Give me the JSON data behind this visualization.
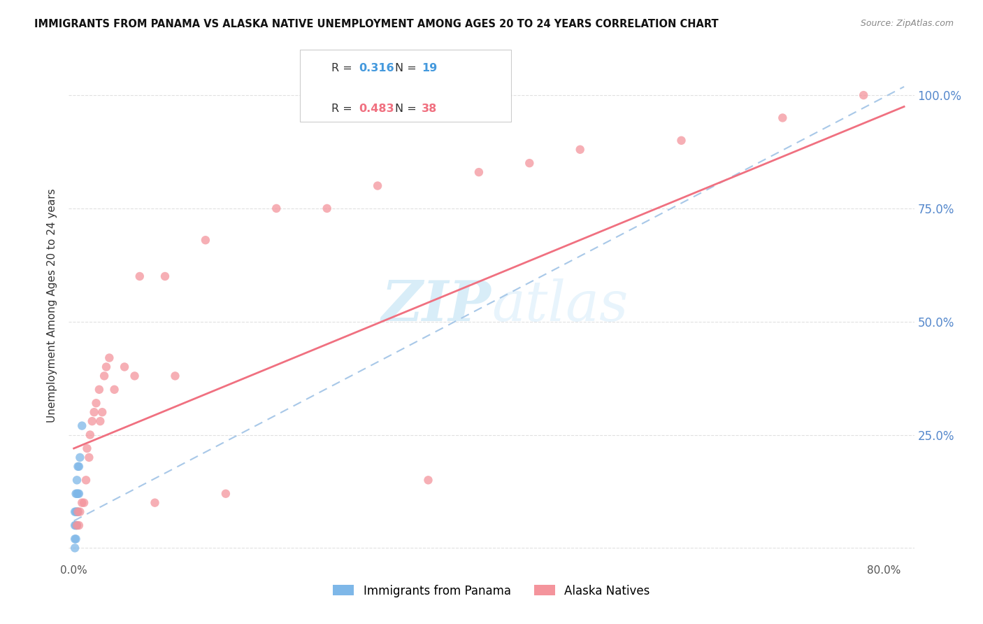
{
  "title": "IMMIGRANTS FROM PANAMA VS ALASKA NATIVE UNEMPLOYMENT AMONG AGES 20 TO 24 YEARS CORRELATION CHART",
  "source": "Source: ZipAtlas.com",
  "ylabel": "Unemployment Among Ages 20 to 24 years",
  "xlim_min": -0.005,
  "xlim_max": 0.83,
  "ylim_min": -0.03,
  "ylim_max": 1.1,
  "x_tick_positions": [
    0.0,
    0.1,
    0.2,
    0.3,
    0.4,
    0.5,
    0.6,
    0.7,
    0.8
  ],
  "x_tick_labels": [
    "0.0%",
    "",
    "",
    "",
    "",
    "",
    "",
    "",
    "80.0%"
  ],
  "y_tick_positions": [
    0.0,
    0.25,
    0.5,
    0.75,
    1.0
  ],
  "y_tick_labels_right": [
    "",
    "25.0%",
    "50.0%",
    "75.0%",
    "100.0%"
  ],
  "legend_line1": "R = 0.316   N = 19",
  "legend_line2": "R = 0.483   N = 38",
  "legend_R1_val": "0.316",
  "legend_N1_val": "19",
  "legend_R2_val": "0.483",
  "legend_N2_val": "38",
  "series1_label": "Immigrants from Panama",
  "series2_label": "Alaska Natives",
  "series1_color": "#7eb7e8",
  "series2_color": "#f4949c",
  "trendline1_color": "#a8c8e8",
  "trendline2_color": "#f07080",
  "grid_color": "#e0e0e0",
  "watermark_color": "#d8edf8",
  "background_color": "#ffffff",
  "pan_x": [
    0.001,
    0.001,
    0.001,
    0.001,
    0.002,
    0.002,
    0.002,
    0.002,
    0.003,
    0.003,
    0.003,
    0.003,
    0.004,
    0.004,
    0.004,
    0.005,
    0.005,
    0.006,
    0.008
  ],
  "pan_y": [
    0.0,
    0.02,
    0.05,
    0.08,
    0.02,
    0.05,
    0.08,
    0.12,
    0.05,
    0.08,
    0.12,
    0.15,
    0.08,
    0.12,
    0.18,
    0.12,
    0.18,
    0.2,
    0.27
  ],
  "ak_x": [
    0.003,
    0.004,
    0.005,
    0.006,
    0.008,
    0.01,
    0.012,
    0.013,
    0.015,
    0.016,
    0.018,
    0.02,
    0.022,
    0.025,
    0.026,
    0.028,
    0.03,
    0.032,
    0.035,
    0.04,
    0.05,
    0.06,
    0.065,
    0.08,
    0.09,
    0.1,
    0.13,
    0.15,
    0.2,
    0.25,
    0.3,
    0.35,
    0.4,
    0.45,
    0.5,
    0.6,
    0.7,
    0.78
  ],
  "ak_y": [
    0.05,
    0.08,
    0.05,
    0.08,
    0.1,
    0.1,
    0.15,
    0.22,
    0.2,
    0.25,
    0.28,
    0.3,
    0.32,
    0.35,
    0.28,
    0.3,
    0.38,
    0.4,
    0.42,
    0.35,
    0.4,
    0.38,
    0.6,
    0.1,
    0.6,
    0.38,
    0.68,
    0.12,
    0.75,
    0.75,
    0.8,
    0.15,
    0.83,
    0.85,
    0.88,
    0.9,
    0.95,
    1.0
  ],
  "trendline1_x0": 0.0,
  "trendline1_y0": 0.06,
  "trendline1_x1": 0.8,
  "trendline1_y1": 1.0,
  "trendline2_x0": 0.0,
  "trendline2_y0": 0.22,
  "trendline2_x1": 0.8,
  "trendline2_y1": 0.96
}
